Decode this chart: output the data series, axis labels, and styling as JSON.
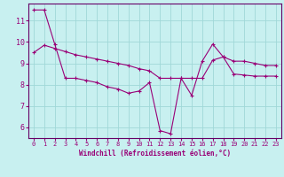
{
  "xlabel": "Windchill (Refroidissement éolien,°C)",
  "bg_color": "#c8f0f0",
  "grid_color": "#a0d8d8",
  "line_color": "#990077",
  "spine_color": "#660066",
  "x_ticks": [
    0,
    1,
    2,
    3,
    4,
    5,
    6,
    7,
    8,
    9,
    10,
    11,
    12,
    13,
    14,
    15,
    16,
    17,
    18,
    19,
    20,
    21,
    22,
    23
  ],
  "y_ticks": [
    6,
    7,
    8,
    9,
    10,
    11
  ],
  "xlim": [
    -0.5,
    23.5
  ],
  "ylim": [
    5.5,
    11.8
  ],
  "line1_x": [
    0,
    1,
    2,
    3,
    4,
    5,
    6,
    7,
    8,
    9,
    10,
    11,
    12,
    13,
    14,
    15,
    16,
    17,
    18,
    19,
    20,
    21,
    22,
    23
  ],
  "line1_y": [
    11.5,
    11.5,
    9.9,
    8.3,
    8.3,
    8.2,
    8.1,
    7.9,
    7.8,
    7.6,
    7.7,
    8.1,
    5.85,
    5.7,
    8.3,
    7.5,
    9.1,
    9.9,
    9.3,
    9.1,
    9.1,
    9.0,
    8.9,
    8.9
  ],
  "line2_x": [
    0,
    1,
    2,
    3,
    4,
    5,
    6,
    7,
    8,
    9,
    10,
    11,
    12,
    13,
    14,
    15,
    16,
    17,
    18,
    19,
    20,
    21,
    22,
    23
  ],
  "line2_y": [
    9.5,
    9.85,
    9.7,
    9.55,
    9.4,
    9.3,
    9.2,
    9.1,
    9.0,
    8.9,
    8.75,
    8.65,
    8.3,
    8.3,
    8.3,
    8.3,
    8.3,
    9.15,
    9.3,
    8.5,
    8.45,
    8.4,
    8.4,
    8.4
  ]
}
